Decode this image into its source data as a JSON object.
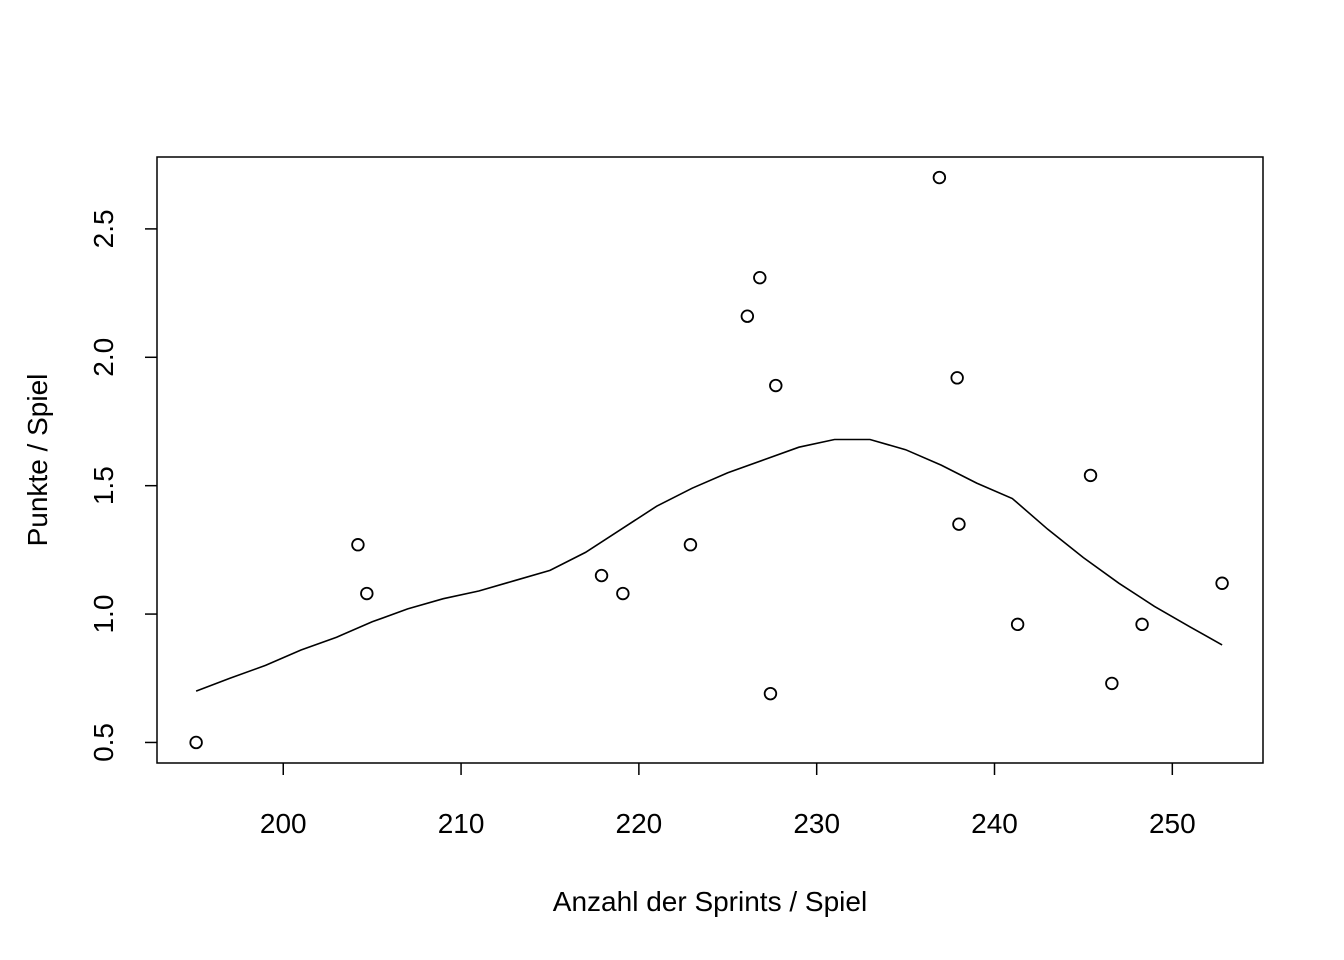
{
  "chart_data": {
    "type": "scatter",
    "title": "",
    "xlabel": "Anzahl der Sprints / Spiel",
    "ylabel": "Punkte / Spiel",
    "xlim": [
      192.9,
      255.1
    ],
    "ylim": [
      0.42,
      2.78
    ],
    "grid": false,
    "legend": "none",
    "x_ticks": [
      200,
      210,
      220,
      230,
      240,
      250
    ],
    "x_tick_labels": [
      "200",
      "210",
      "220",
      "230",
      "240",
      "250"
    ],
    "y_ticks": [
      0.5,
      1.0,
      1.5,
      2.0,
      2.5
    ],
    "y_tick_labels": [
      "0.5",
      "1.0",
      "1.5",
      "2.0",
      "2.5"
    ],
    "series": [
      {
        "type": "scatter",
        "x": [
          195.1,
          204.2,
          204.7,
          217.9,
          219.1,
          222.9,
          226.1,
          226.8,
          227.4,
          227.7,
          236.9,
          237.9,
          238.0,
          241.3,
          245.4,
          246.6,
          248.3,
          252.8
        ],
        "y": [
          0.5,
          1.27,
          1.08,
          1.15,
          1.08,
          1.27,
          2.16,
          2.31,
          0.69,
          1.89,
          2.7,
          1.92,
          1.35,
          0.96,
          1.54,
          0.73,
          0.96,
          1.12
        ]
      },
      {
        "type": "line",
        "x": [
          195.1,
          197,
          199,
          201,
          203,
          205,
          207,
          209,
          211,
          213,
          215,
          217,
          219,
          221,
          223,
          225,
          227,
          229,
          231,
          233,
          235,
          237,
          239,
          241,
          243,
          245,
          247,
          249,
          251,
          252.8
        ],
        "y": [
          0.7,
          0.75,
          0.8,
          0.86,
          0.91,
          0.97,
          1.02,
          1.06,
          1.09,
          1.13,
          1.17,
          1.24,
          1.33,
          1.42,
          1.49,
          1.55,
          1.6,
          1.65,
          1.68,
          1.68,
          1.64,
          1.58,
          1.51,
          1.45,
          1.33,
          1.22,
          1.12,
          1.03,
          0.95,
          0.88
        ]
      }
    ],
    "colors": {
      "axis": "#000000",
      "points": "#000000",
      "line": "#000000",
      "background": "#ffffff"
    }
  }
}
